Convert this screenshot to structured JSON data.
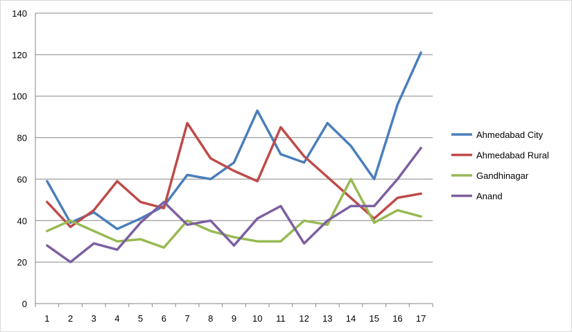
{
  "chart_data": {
    "type": "line",
    "title": "",
    "xlabel": "",
    "ylabel": "",
    "x": [
      1,
      2,
      3,
      4,
      5,
      6,
      7,
      8,
      9,
      10,
      11,
      12,
      13,
      14,
      15,
      16,
      17
    ],
    "ylim": [
      0,
      140
    ],
    "yticks": [
      0,
      20,
      40,
      60,
      80,
      100,
      120,
      140
    ],
    "grid": "horizontal",
    "legend_position": "right",
    "series": [
      {
        "name": "Ahmedabad City",
        "color": "#4a7ebb",
        "values": [
          59,
          39,
          44,
          36,
          41,
          47,
          62,
          60,
          68,
          93,
          72,
          68,
          87,
          76,
          60,
          96,
          121
        ]
      },
      {
        "name": "Ahmedabad Rural",
        "color": "#be4b48",
        "values": [
          49,
          37,
          45,
          59,
          49,
          46,
          87,
          70,
          64,
          59,
          85,
          71,
          61,
          51,
          41,
          51,
          53
        ]
      },
      {
        "name": "Gandhinagar",
        "color": "#98b954",
        "values": [
          35,
          40,
          35,
          30,
          31,
          27,
          40,
          35,
          32,
          30,
          30,
          40,
          38,
          60,
          39,
          45,
          42
        ]
      },
      {
        "name": "Anand",
        "color": "#7d5fa0",
        "values": [
          28,
          20,
          29,
          26,
          39,
          49,
          38,
          40,
          28,
          41,
          47,
          29,
          40,
          47,
          47,
          60,
          75
        ]
      }
    ]
  }
}
